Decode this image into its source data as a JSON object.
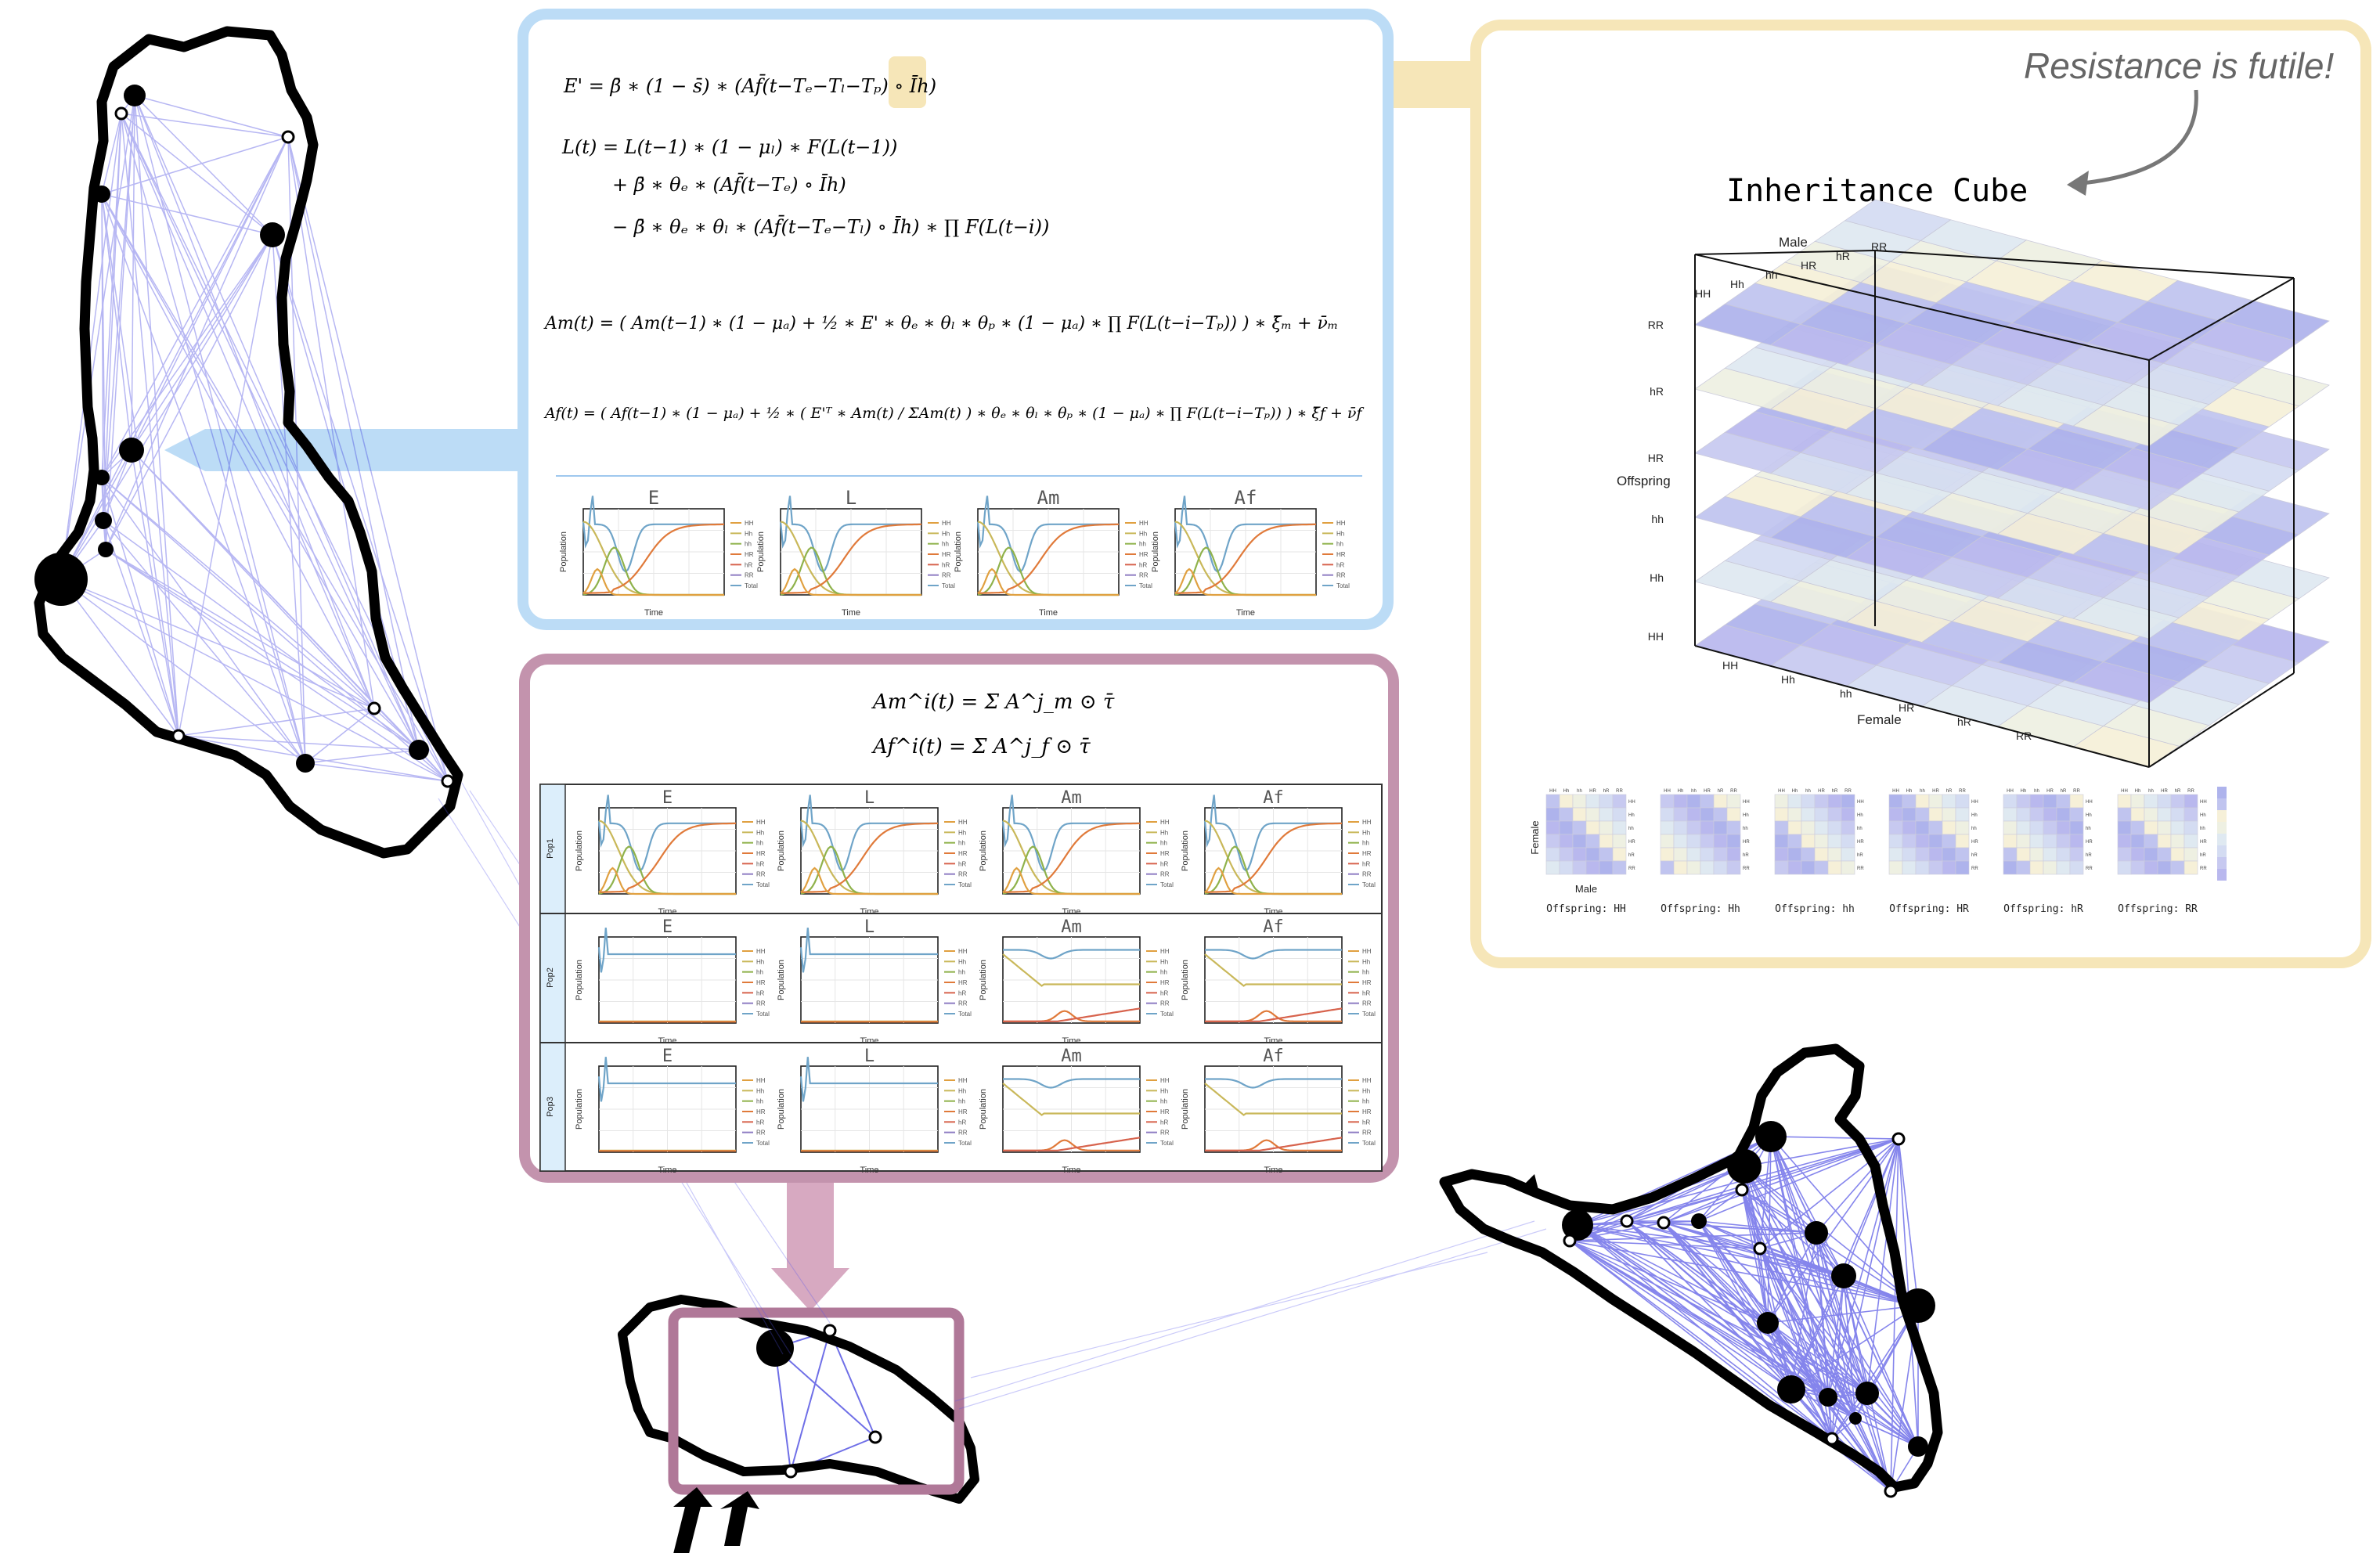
{
  "inheritance_panel": {
    "annotation": "Resistance is futile!",
    "title": "Inheritance Cube",
    "axes": {
      "male": "Male",
      "female": "Female",
      "offspring": "Offspring"
    },
    "genotypes": [
      "HH",
      "Hh",
      "hh",
      "HR",
      "hR",
      "RR"
    ],
    "slice_axis_female": "Female",
    "slice_axis_male": "Male",
    "slices": [
      "Offspring: HH",
      "Offspring: Hh",
      "Offspring: hh",
      "Offspring: HR",
      "Offspring: hR",
      "Offspring: RR"
    ]
  },
  "equations_panel": {
    "eq1": "E' = β̄ ∗ (1 − s̄) ∗ (Af̄(t−Tₑ−Tₗ−Tₚ) ∘ Īh)",
    "eq2a": "L(t) = L(t−1) ∗ (1 − μₗ) ∗ F(L(t−1))",
    "eq2b": "+ β̄ ∗ θₑ ∗ (Af̄(t−Tₑ) ∘ Īh)",
    "eq2c": "− β̄ ∗ θₑ ∗ θₗ ∗ (Af̄(t−Tₑ−Tₗ) ∘ Īh) ∗ ∏ F(L(t−i))",
    "eq3": "Am(t) = ( Am(t−1) ∗ (1 − μₐ) + ½ ∗ E' ∗ θₑ ∗ θₗ ∗ θₚ ∗ (1 − μₐ) ∗ ∏ F(L(t−i−Tₚ)) ) ∗ ξ̄ₘ + ν̄ₘ",
    "eq4": "Af(t) = ( Af(t−1) ∗ (1 − μₐ) + ½ ∗ ( E'ᵀ ∗ Am(t) / ΣAm(t) ) ∗ θₑ ∗ θₗ ∗ θₚ ∗ (1 − μₐ) ∗ ∏ F(L(t−i−Tₚ)) ) ∗ ξ̄f + ν̄f",
    "plots": [
      "E",
      "L",
      "Am",
      "Af"
    ],
    "plot_xlabel": "Time",
    "plot_ylabel": "Population",
    "legend": [
      "HH",
      "Hh",
      "hh",
      "HR",
      "hR",
      "RR",
      "Total"
    ]
  },
  "metapop_panel": {
    "eq1": "Am^i(t) = Σ A^j_m ⊙ τ̄",
    "eq2": "Af^i(t) = Σ A^j_f ⊙ τ̄",
    "rows": [
      "Pop1",
      "Pop2",
      "Pop3"
    ],
    "plots": [
      "E",
      "L",
      "Am",
      "Af"
    ],
    "plot_xlabel": "Time",
    "plot_ylabel": "Population"
  },
  "colors": {
    "blue_panel": "#bcdcf6",
    "yellow_panel": "#f6e6b8",
    "mauve_panel": "#c393ad",
    "network_edge": "#2b2bd6",
    "series": [
      "#e0a040",
      "#c9b85a",
      "#8fb24b",
      "#e07a3a",
      "#d7634d",
      "#8e7cc3",
      "#6fa4c8"
    ]
  }
}
